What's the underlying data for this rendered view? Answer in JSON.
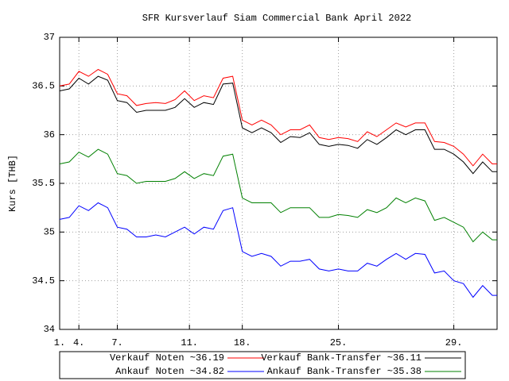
{
  "chart_data": {
    "type": "line",
    "title": "SFR Kursverlauf Siam Commercial Bank April 2022",
    "y_label": "Kurs [THB]",
    "x": [
      0,
      2,
      4,
      6,
      8,
      10,
      12,
      14,
      16,
      18,
      20,
      22,
      24,
      26,
      28,
      30,
      32,
      34,
      36,
      38,
      40,
      42,
      44,
      46,
      48,
      50,
      52,
      54,
      56,
      58,
      60,
      62,
      64,
      66,
      68,
      70,
      72,
      74,
      76,
      78,
      80,
      82,
      84,
      86,
      88,
      90,
      91
    ],
    "xlim": [
      0,
      91
    ],
    "xticks": [
      {
        "value": 0,
        "label": "1."
      },
      {
        "value": 4,
        "label": "4."
      },
      {
        "value": 12,
        "label": "7."
      },
      {
        "value": 27,
        "label": "11."
      },
      {
        "value": 38,
        "label": "18."
      },
      {
        "value": 58,
        "label": "25."
      },
      {
        "value": 82,
        "label": "29."
      }
    ],
    "ylim": [
      34,
      37
    ],
    "yticks": [
      34,
      34.5,
      35,
      35.5,
      36,
      36.5,
      37
    ],
    "grid": true,
    "legend": "bottom",
    "series": [
      {
        "name": "Verkauf Noten ~36.19",
        "color": "#ff0000",
        "values": [
          36.5,
          36.52,
          36.65,
          36.6,
          36.67,
          36.62,
          36.42,
          36.4,
          36.3,
          36.32,
          36.33,
          36.32,
          36.36,
          36.45,
          36.35,
          36.4,
          36.38,
          36.58,
          36.6,
          36.15,
          36.1,
          36.15,
          36.1,
          36.0,
          36.05,
          36.05,
          36.1,
          35.97,
          35.95,
          35.97,
          35.96,
          35.93,
          36.03,
          35.98,
          36.05,
          36.12,
          36.08,
          36.12,
          36.12,
          35.93,
          35.92,
          35.88,
          35.8,
          35.68,
          35.8,
          35.7,
          35.7
        ]
      },
      {
        "name": "Verkauf Bank-Transfer ~36.11",
        "color": "#000000",
        "values": [
          36.45,
          36.47,
          36.58,
          36.52,
          36.6,
          36.56,
          36.35,
          36.33,
          36.23,
          36.25,
          36.25,
          36.25,
          36.28,
          36.37,
          36.28,
          36.33,
          36.31,
          36.52,
          36.53,
          36.07,
          36.02,
          36.07,
          36.02,
          35.92,
          35.98,
          35.97,
          36.02,
          35.9,
          35.88,
          35.9,
          35.89,
          35.86,
          35.95,
          35.9,
          35.97,
          36.05,
          36.0,
          36.05,
          36.05,
          35.85,
          35.85,
          35.8,
          35.72,
          35.6,
          35.72,
          35.62,
          35.62
        ]
      },
      {
        "name": "Ankauf Noten ~34.82",
        "color": "#0000ff",
        "values": [
          35.13,
          35.15,
          35.27,
          35.22,
          35.3,
          35.25,
          35.05,
          35.03,
          34.95,
          34.95,
          34.97,
          34.95,
          35.0,
          35.05,
          34.98,
          35.05,
          35.03,
          35.22,
          35.25,
          34.8,
          34.75,
          34.78,
          34.75,
          34.65,
          34.7,
          34.7,
          34.72,
          34.62,
          34.6,
          34.62,
          34.6,
          34.6,
          34.68,
          34.65,
          34.72,
          34.78,
          34.72,
          34.78,
          34.77,
          34.58,
          34.6,
          34.5,
          34.47,
          34.33,
          34.45,
          34.35,
          34.35
        ]
      },
      {
        "name": "Ankauf Bank-Transfer ~35.38",
        "color": "#008000",
        "values": [
          35.7,
          35.72,
          35.82,
          35.77,
          35.85,
          35.8,
          35.6,
          35.58,
          35.5,
          35.52,
          35.52,
          35.52,
          35.55,
          35.62,
          35.55,
          35.6,
          35.58,
          35.78,
          35.8,
          35.35,
          35.3,
          35.3,
          35.3,
          35.2,
          35.25,
          35.25,
          35.25,
          35.15,
          35.15,
          35.18,
          35.17,
          35.15,
          35.23,
          35.2,
          35.25,
          35.35,
          35.3,
          35.35,
          35.32,
          35.12,
          35.15,
          35.1,
          35.05,
          34.9,
          35.0,
          34.92,
          34.92
        ]
      }
    ]
  }
}
